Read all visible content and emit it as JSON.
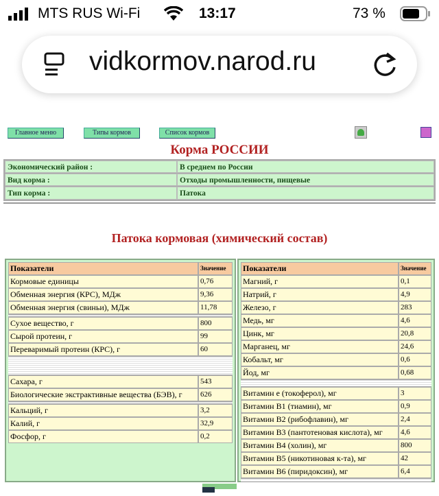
{
  "status_bar": {
    "carrier": "MTS RUS Wi-Fi",
    "time": "13:17",
    "battery": "73 %"
  },
  "browser": {
    "url": "vidkormov.narod.ru"
  },
  "nav": {
    "main_menu": "Главное меню",
    "feed_types": "Типы кормов",
    "feed_list": "Список кормов"
  },
  "page_title": "Корма РОССИИ",
  "info": [
    {
      "label": "Экономический район :",
      "value": "В среднем по России"
    },
    {
      "label": "Вид корма :",
      "value": "Отходы промышленности, пищевые"
    },
    {
      "label": "Тип корма :",
      "value": "Патока"
    }
  ],
  "subtitle": "Патока кормовая (химический состав)",
  "table_headers": {
    "name": "Показатели",
    "value": "Значение"
  },
  "left": [
    {
      "name": "Кормовые единицы",
      "value": "0,76"
    },
    {
      "name": "Обменная энергия (КРС), МДж",
      "value": "9,36"
    },
    {
      "name": "Обменная энергия (свиньи), МДж",
      "value": "11,78"
    },
    {
      "name": "Сухое вещество, г",
      "value": "800"
    },
    {
      "name": "Сырой протеин, г",
      "value": "99"
    },
    {
      "name": "Переваримый протеин (КРС), г",
      "value": "60"
    },
    {
      "name": "Сахара, г",
      "value": "543"
    },
    {
      "name": "Биологические экстрактивные вещества (БЭВ), г",
      "value": "626"
    },
    {
      "name": "Кальций, г",
      "value": "3,2"
    },
    {
      "name": "Калий, г",
      "value": "32,9"
    },
    {
      "name": "Фосфор, г",
      "value": "0,2"
    }
  ],
  "right": [
    {
      "name": "Магний, г",
      "value": "0,1"
    },
    {
      "name": "Натрий, г",
      "value": "4,9"
    },
    {
      "name": "Железо, г",
      "value": "283"
    },
    {
      "name": "Медь, мг",
      "value": "4,6"
    },
    {
      "name": "Цинк, мг",
      "value": "20,8"
    },
    {
      "name": "Марганец, мг",
      "value": "24,6"
    },
    {
      "name": "Кобальт, мг",
      "value": "0,6"
    },
    {
      "name": "Йод, мг",
      "value": "0,68"
    },
    {
      "name": "Витамин е (токоферол), мг",
      "value": "3"
    },
    {
      "name": "Витамин B1 (тиамин), мг",
      "value": "0,9"
    },
    {
      "name": "Витамин B2 (рибофлавин), мг",
      "value": "2,4"
    },
    {
      "name": "Витамин B3 (пантотеновая кислота), мг",
      "value": "4,6"
    },
    {
      "name": "Витамин B4 (холин), мг",
      "value": "800"
    },
    {
      "name": "Витамин B5 (никотиновая к-та), мг",
      "value": "42"
    },
    {
      "name": "Витамин B6 (пиридоксин), мг",
      "value": "6,4"
    }
  ]
}
